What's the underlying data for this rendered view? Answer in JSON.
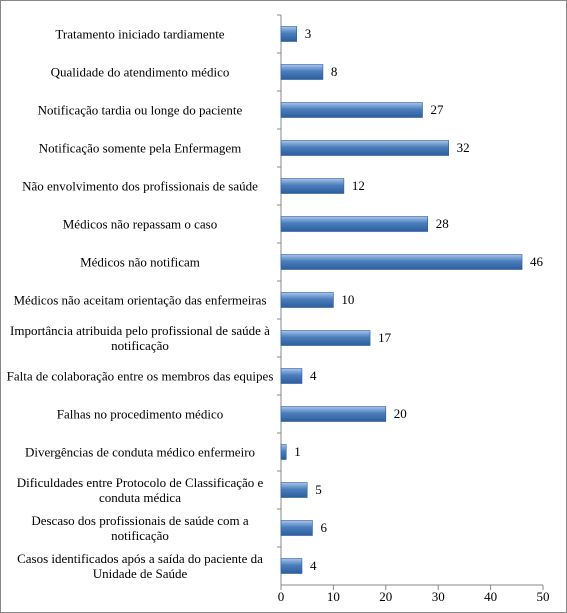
{
  "chart_data": {
    "type": "barh",
    "categories": [
      "Tratamento iniciado tardiamente",
      "Qualidade do atendimento médico",
      "Notificação tardia ou longe do paciente",
      "Notificação somente pela Enfermagem",
      "Não envolvimento dos profissionais de saúde",
      "Médicos não repassam o caso",
      "Médicos não notificam",
      "Médicos não aceitam orientação das enfermeiras",
      "Importância atribuida pelo profissional de saúde à notificação",
      "Falta de colaboração entre os membros das equipes",
      "Falhas no procedimento médico",
      "Divergências de conduta médico enfermeiro",
      "Dificuldades entre Protocolo de Classificação e conduta médica",
      "Descaso dos profissionais de saúde com a notificação",
      "Casos identificados após a saída do paciente da Unidade de Saúde"
    ],
    "values": [
      3,
      8,
      27,
      32,
      12,
      28,
      46,
      10,
      17,
      4,
      20,
      1,
      5,
      6,
      4
    ],
    "color": "#4a7ebb",
    "xlim": [
      0,
      50
    ],
    "xticks": [
      0,
      10,
      20,
      30,
      40,
      50
    ],
    "grid": false
  }
}
